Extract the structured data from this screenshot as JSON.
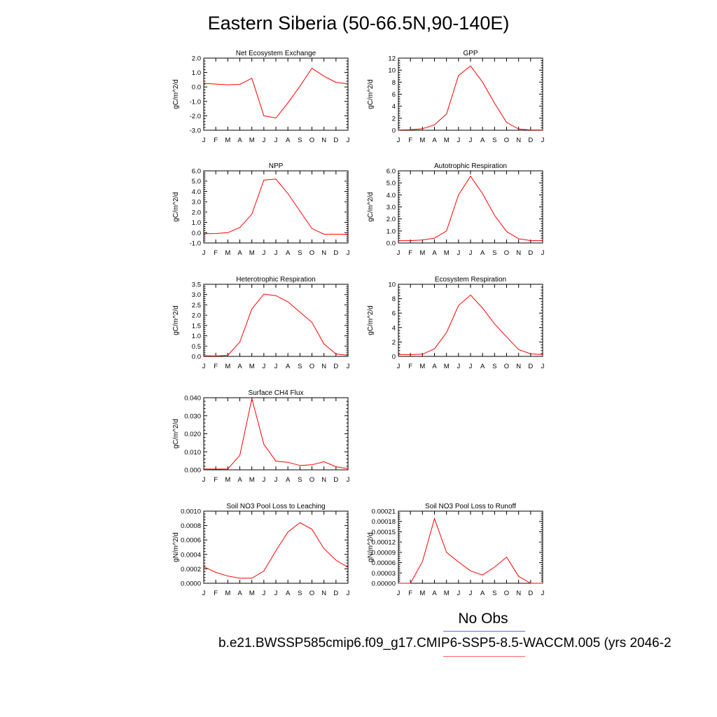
{
  "page_title": "Eastern Siberia (50-66.5N,90-140E)",
  "legend": {
    "no_obs_label": "No Obs",
    "case_label": "b.e21.BWSSP585cmip6.f09_g17.CMIP6-SSP5-8.5-WACCM.005 (yrs 2046-2",
    "obs_line_color": "#6666ff",
    "model_line_color": "#ff6666"
  },
  "colors": {
    "series": "#ff0000",
    "axis": "#000000"
  },
  "chart_data": [
    {
      "type": "line",
      "title": "Net Ecosystem Exchange",
      "ylabel": "gC/m^2/d",
      "x": [
        "J",
        "F",
        "M",
        "A",
        "M",
        "J",
        "J",
        "A",
        "S",
        "O",
        "N",
        "D",
        "J"
      ],
      "ylim": [
        -3.0,
        2.0
      ],
      "yticks": [
        "-3.0",
        "-2.0",
        "-1.0",
        "0.0",
        "1.0",
        "2.0"
      ],
      "values": [
        0.25,
        0.2,
        0.15,
        0.18,
        0.6,
        -2.0,
        -2.15,
        -1.1,
        0.05,
        1.3,
        0.75,
        0.32,
        0.22
      ]
    },
    {
      "type": "line",
      "title": "GPP",
      "ylabel": "gC/m^2/d",
      "x": [
        "J",
        "F",
        "M",
        "A",
        "M",
        "J",
        "J",
        "A",
        "S",
        "O",
        "N",
        "D",
        "J"
      ],
      "ylim": [
        0,
        12
      ],
      "yticks": [
        "0",
        "2",
        "4",
        "6",
        "8",
        "10",
        "12"
      ],
      "values": [
        0.05,
        0.08,
        0.25,
        0.9,
        2.7,
        9.1,
        10.7,
        8.0,
        4.5,
        1.3,
        0.2,
        0.05,
        0.05
      ]
    },
    {
      "type": "line",
      "title": "NPP",
      "ylabel": "gC/m^2/d",
      "x": [
        "J",
        "F",
        "M",
        "A",
        "M",
        "J",
        "J",
        "A",
        "S",
        "O",
        "N",
        "D",
        "J"
      ],
      "ylim": [
        -1.0,
        6.0
      ],
      "yticks": [
        "-1.0",
        "0.0",
        "1.0",
        "2.0",
        "3.0",
        "4.0",
        "5.0",
        "6.0"
      ],
      "values": [
        -0.1,
        -0.08,
        0.0,
        0.5,
        1.8,
        5.1,
        5.2,
        3.8,
        2.1,
        0.4,
        -0.15,
        -0.15,
        -0.15
      ]
    },
    {
      "type": "line",
      "title": "Autotrophic Respiration",
      "ylabel": "gC/m^2/d",
      "x": [
        "J",
        "F",
        "M",
        "A",
        "M",
        "J",
        "J",
        "A",
        "S",
        "O",
        "N",
        "D",
        "J"
      ],
      "ylim": [
        0.0,
        6.0
      ],
      "yticks": [
        "0.0",
        "1.0",
        "2.0",
        "3.0",
        "4.0",
        "5.0",
        "6.0"
      ],
      "values": [
        0.2,
        0.2,
        0.25,
        0.4,
        1.0,
        4.0,
        5.55,
        4.1,
        2.3,
        0.95,
        0.35,
        0.2,
        0.2
      ]
    },
    {
      "type": "line",
      "title": "Heterotrophic Respiration",
      "ylabel": "gC/m^2/d",
      "x": [
        "J",
        "F",
        "M",
        "A",
        "M",
        "J",
        "J",
        "A",
        "S",
        "O",
        "N",
        "D",
        "J"
      ],
      "ylim": [
        0.0,
        3.5
      ],
      "yticks": [
        "0.0",
        "0.5",
        "1.0",
        "1.5",
        "2.0",
        "2.5",
        "3.0",
        "3.5"
      ],
      "values": [
        0.03,
        0.02,
        0.05,
        0.7,
        2.3,
        3.02,
        2.95,
        2.65,
        2.15,
        1.65,
        0.6,
        0.12,
        0.05
      ]
    },
    {
      "type": "line",
      "title": "Ecosystem Respiration",
      "ylabel": "gC/m^2/d",
      "x": [
        "J",
        "F",
        "M",
        "A",
        "M",
        "J",
        "J",
        "A",
        "S",
        "O",
        "N",
        "D",
        "J"
      ],
      "ylim": [
        0,
        10
      ],
      "yticks": [
        "0",
        "2",
        "4",
        "6",
        "8",
        "10"
      ],
      "values": [
        0.25,
        0.25,
        0.3,
        1.05,
        3.3,
        7.05,
        8.5,
        6.7,
        4.5,
        2.7,
        0.95,
        0.35,
        0.25
      ]
    },
    {
      "type": "line",
      "title": "Surface CH4 Flux",
      "ylabel": "gC/m^2/d",
      "x": [
        "J",
        "F",
        "M",
        "A",
        "M",
        "J",
        "J",
        "A",
        "S",
        "O",
        "N",
        "D",
        "J"
      ],
      "ylim": [
        0.0,
        0.04
      ],
      "yticks": [
        "0.000",
        "0.010",
        "0.020",
        "0.030",
        "0.040"
      ],
      "values": [
        0.0005,
        0.0004,
        0.0005,
        0.008,
        0.0395,
        0.0142,
        0.0048,
        0.0042,
        0.0024,
        0.0028,
        0.0045,
        0.0017,
        0.0007
      ]
    },
    {
      "type": "line",
      "title": "Soil NO3 Pool Loss to Leaching",
      "ylabel": "gN/m^2/d",
      "x": [
        "J",
        "F",
        "M",
        "A",
        "M",
        "J",
        "J",
        "A",
        "S",
        "O",
        "N",
        "D",
        "J"
      ],
      "ylim": [
        0.0,
        0.001
      ],
      "yticks": [
        "0.0000",
        "0.0002",
        "0.0004",
        "0.0006",
        "0.0008",
        "0.0010"
      ],
      "values": [
        0.00023,
        0.00015,
        0.0001,
        7e-05,
        7e-05,
        0.00017,
        0.00045,
        0.00071,
        0.00084,
        0.00075,
        0.00048,
        0.00032,
        0.00022
      ]
    },
    {
      "type": "line",
      "title": "Soil NO3 Pool Loss to Runoff",
      "ylabel": "gN/m^2/d",
      "x": [
        "J",
        "F",
        "M",
        "A",
        "M",
        "J",
        "J",
        "A",
        "S",
        "O",
        "N",
        "D",
        "J"
      ],
      "ylim": [
        0.0,
        0.00021
      ],
      "yticks": [
        "0.00000",
        "0.00003",
        "0.00006",
        "0.00009",
        "0.00012",
        "0.00015",
        "0.00018",
        "0.00021"
      ],
      "values": [
        0.0,
        0.0,
        6.3e-05,
        0.000188,
        9e-05,
        6.2e-05,
        3.6e-05,
        2.4e-05,
        4.7e-05,
        7.6e-05,
        2e-05,
        0.0,
        0.0
      ]
    }
  ]
}
